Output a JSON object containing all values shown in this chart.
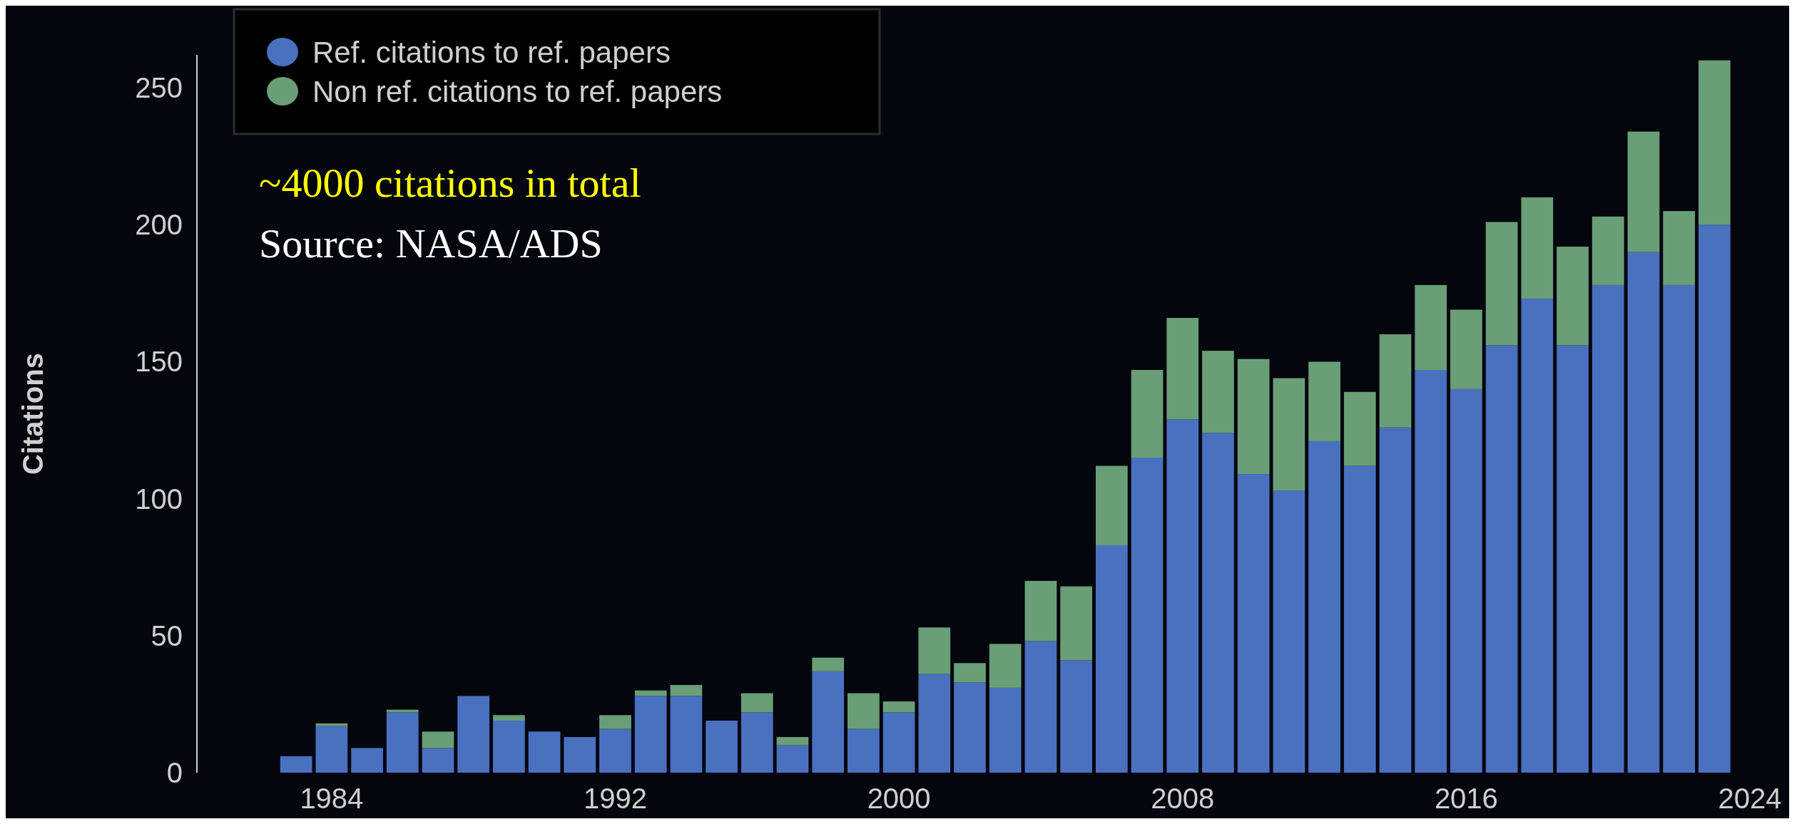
{
  "chart_data": {
    "type": "bar",
    "stacked": true,
    "ylabel": "Citations",
    "x": [
      1983,
      1984,
      1985,
      1986,
      1987,
      1988,
      1989,
      1990,
      1991,
      1992,
      1993,
      1994,
      1995,
      1996,
      1997,
      1998,
      1999,
      2000,
      2001,
      2002,
      2003,
      2004,
      2005,
      2006,
      2007,
      2008,
      2009,
      2010,
      2011,
      2012,
      2013,
      2014,
      2015,
      2016,
      2017,
      2018,
      2019,
      2020,
      2021,
      2022,
      2023
    ],
    "series": [
      {
        "name": "Ref. citations to ref. papers",
        "color": "#4a70c0",
        "values": [
          6,
          17,
          9,
          22,
          9,
          28,
          19,
          15,
          13,
          16,
          28,
          28,
          19,
          22,
          10,
          37,
          16,
          22,
          36,
          33,
          31,
          48,
          41,
          83,
          115,
          129,
          124,
          109,
          103,
          121,
          112,
          126,
          147,
          140,
          156,
          173,
          156,
          178,
          190,
          178,
          200
        ]
      },
      {
        "name": "Non ref. citations to ref. papers",
        "color": "#6a9e77",
        "values": [
          0,
          1,
          0,
          1,
          6,
          0,
          2,
          0,
          0,
          5,
          2,
          4,
          0,
          7,
          3,
          5,
          13,
          4,
          17,
          7,
          16,
          22,
          27,
          29,
          32,
          37,
          30,
          42,
          41,
          29,
          27,
          34,
          31,
          29,
          45,
          37,
          36,
          25,
          44,
          27,
          60
        ]
      }
    ],
    "xlim": [
      1980.2,
      2024
    ],
    "xticks": [
      1984,
      1992,
      2000,
      2008,
      2016,
      2024
    ],
    "ylim": [
      0,
      262
    ],
    "yticks": [
      0,
      50,
      100,
      150,
      200,
      250
    ],
    "grid": false,
    "legend": "top left",
    "annotations": [
      "~4000 citations in total",
      "Source: NASA/ADS"
    ]
  }
}
